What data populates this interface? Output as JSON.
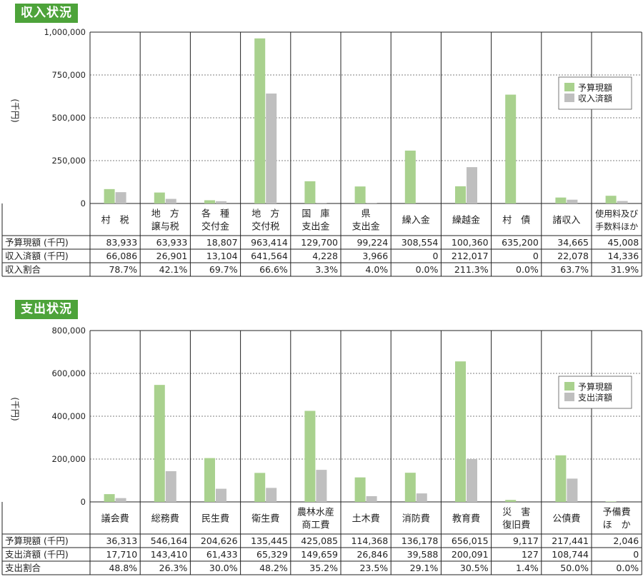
{
  "colors": {
    "budget": "#a9d18e",
    "actual": "#bfbfbf",
    "title_bg": "#4da33a"
  },
  "chart_data": [
    {
      "type": "bar",
      "title": "収入状況",
      "ylabel": "(千円)",
      "ylim": [
        0,
        1000000
      ],
      "yticks": [
        "1,000,000",
        "750,000",
        "500,000",
        "250,000",
        "0"
      ],
      "ytick_values": [
        1000000,
        750000,
        500000,
        250000,
        0
      ],
      "categories": [
        [
          "村　税"
        ],
        [
          "地　方",
          "譲与税"
        ],
        [
          "各　種",
          "交付金"
        ],
        [
          "地　方",
          "交付税"
        ],
        [
          "国　庫",
          "支出金"
        ],
        [
          "県",
          "支出金"
        ],
        [
          "繰入金"
        ],
        [
          "繰越金"
        ],
        [
          "村　債"
        ],
        [
          "諸収入"
        ],
        [
          "使用料及び",
          "手数料ほか"
        ]
      ],
      "series": [
        {
          "name": "予算現額",
          "values": [
            83933,
            63933,
            18807,
            963414,
            129700,
            99224,
            308554,
            100360,
            635200,
            34665,
            45008
          ]
        },
        {
          "name": "収入済額",
          "values": [
            66086,
            26901,
            13104,
            641564,
            4228,
            3966,
            0,
            212017,
            0,
            22078,
            14336
          ]
        }
      ],
      "table": {
        "row_labels": [
          "予算現額 (千円)",
          "収入済額 (千円)",
          "収入割合"
        ],
        "rows": [
          [
            "83,933",
            "63,933",
            "18,807",
            "963,414",
            "129,700",
            "99,224",
            "308,554",
            "100,360",
            "635,200",
            "34,665",
            "45,008"
          ],
          [
            "66,086",
            "26,901",
            "13,104",
            "641,564",
            "4,228",
            "3,966",
            "0",
            "212,017",
            "0",
            "22,078",
            "14,336"
          ],
          [
            "78.7%",
            "42.1%",
            "69.7%",
            "66.6%",
            "3.3%",
            "4.0%",
            "0.0%",
            "211.3%",
            "0.0%",
            "63.7%",
            "31.9%"
          ]
        ]
      },
      "legend": "right"
    },
    {
      "type": "bar",
      "title": "支出状況",
      "ylabel": "(千円)",
      "ylim": [
        0,
        800000
      ],
      "yticks": [
        "800,000",
        "600,000",
        "400,000",
        "200,000",
        "0"
      ],
      "ytick_values": [
        800000,
        600000,
        400000,
        200000,
        0
      ],
      "categories": [
        [
          "議会費"
        ],
        [
          "総務費"
        ],
        [
          "民生費"
        ],
        [
          "衛生費"
        ],
        [
          "農林水産",
          "商工費"
        ],
        [
          "土木費"
        ],
        [
          "消防費"
        ],
        [
          "教育費"
        ],
        [
          "災　害",
          "復旧費"
        ],
        [
          "公債費"
        ],
        [
          "予備費",
          "ほ　か"
        ]
      ],
      "series": [
        {
          "name": "予算現額",
          "values": [
            36313,
            546164,
            204626,
            135445,
            425085,
            114368,
            136178,
            656015,
            9117,
            217441,
            2046
          ]
        },
        {
          "name": "支出済額",
          "values": [
            17710,
            143410,
            61433,
            65329,
            149659,
            26846,
            39588,
            200091,
            127,
            108744,
            0
          ]
        }
      ],
      "table": {
        "row_labels": [
          "予算現額 (千円)",
          "支出済額 (千円)",
          "支出割合"
        ],
        "rows": [
          [
            "36,313",
            "546,164",
            "204,626",
            "135,445",
            "425,085",
            "114,368",
            "136,178",
            "656,015",
            "9,117",
            "217,441",
            "2,046"
          ],
          [
            "17,710",
            "143,410",
            "61,433",
            "65,329",
            "149,659",
            "26,846",
            "39,588",
            "200,091",
            "127",
            "108,744",
            "0"
          ],
          [
            "48.8%",
            "26.3%",
            "30.0%",
            "48.2%",
            "35.2%",
            "23.5%",
            "29.1%",
            "30.5%",
            "1.4%",
            "50.0%",
            "0.0%"
          ]
        ]
      },
      "legend": "right"
    }
  ]
}
